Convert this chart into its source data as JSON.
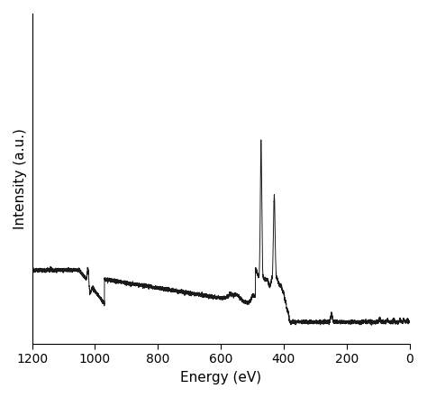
{
  "xlabel": "Energy (eV)",
  "ylabel": "Intensity (a.u.)",
  "line_color": "#1a1a1a",
  "line_width": 0.7,
  "background_color": "#ffffff",
  "xlim": [
    1200,
    0
  ],
  "xticks": [
    1200,
    1000,
    800,
    600,
    400,
    200,
    0
  ],
  "figsize": [
    4.74,
    4.41
  ],
  "dpi": 100
}
